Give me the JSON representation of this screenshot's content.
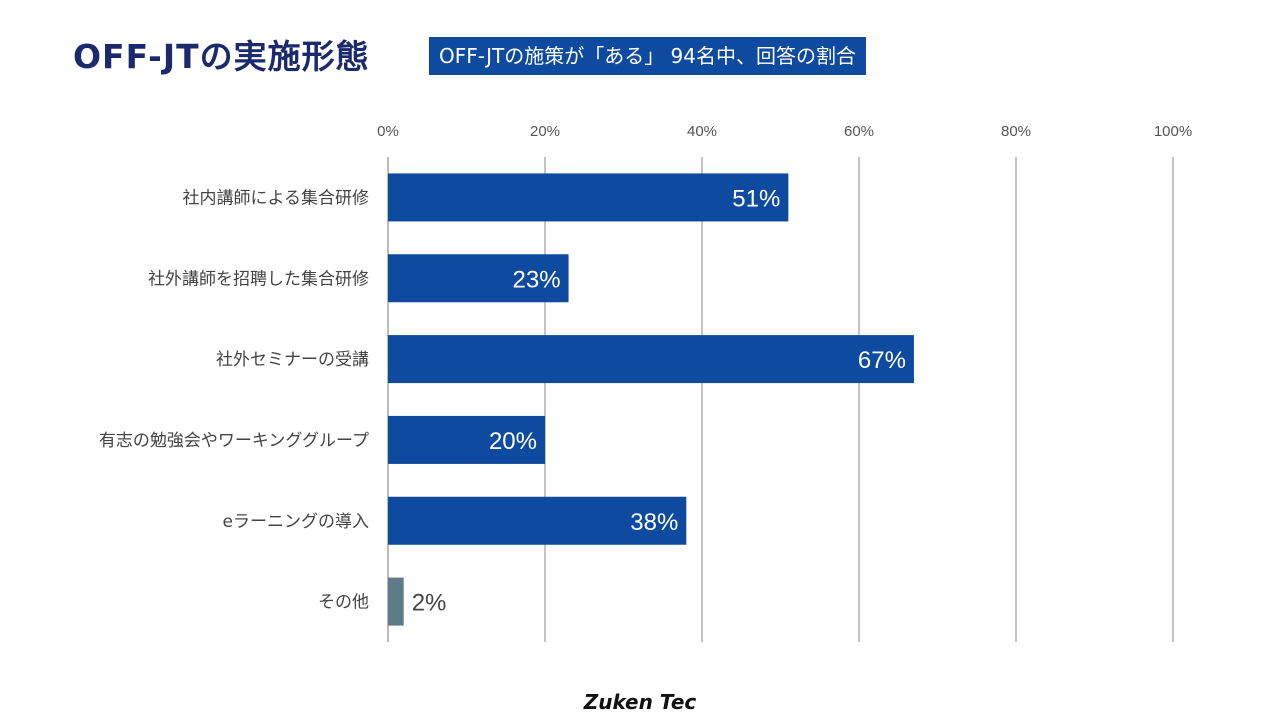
{
  "header": {
    "title": "OFF-JTの実施形態",
    "subtitle": "OFF-JTの施策が「ある」 94名中、回答の割合"
  },
  "footer": {
    "brand": "Zuken Tec"
  },
  "colors": {
    "bar": "#0e4aa0",
    "bar_other": "#5f7a8a",
    "title": "#1a2a6c",
    "label_other": "#444444"
  },
  "chart_data": {
    "type": "bar",
    "orientation": "horizontal",
    "categories": [
      "社内講師による集合研修",
      "社外講師を招聘した集合研修",
      "社外セミナーの受講",
      "有志の勉強会やワーキンググループ",
      "eラーニングの導入",
      "その他"
    ],
    "values": [
      51,
      23,
      67,
      20,
      38,
      2
    ],
    "data_labels": [
      "51%",
      "23%",
      "67%",
      "20%",
      "38%",
      "2%"
    ],
    "xlim": [
      0,
      100
    ],
    "xticks": [
      "0%",
      "20%",
      "40%",
      "60%",
      "80%",
      "100%"
    ],
    "xaxis_position": "top",
    "grid": true
  }
}
